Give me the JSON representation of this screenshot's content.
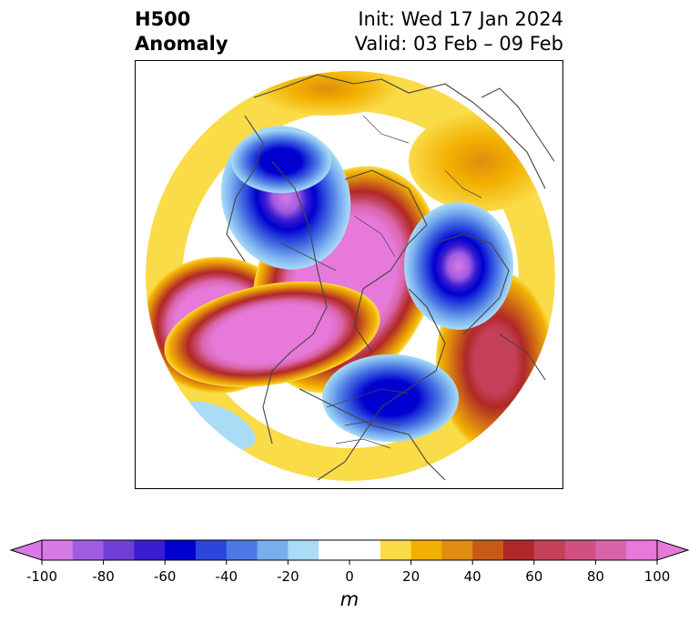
{
  "title": {
    "left_line1": "H500",
    "left_line2": "Anomaly",
    "right_line1": "Init: Wed 17 Jan 2024",
    "right_line2": "Valid: 03 Feb – 09 Feb"
  },
  "map": {
    "projection": "north-polar-stereographic",
    "field": "500 hPa geopotential height anomaly",
    "coastline_color": "#444444"
  },
  "colorbar": {
    "units": "m",
    "min": -100,
    "max": 100,
    "step": 10,
    "extend": "both",
    "colors": [
      "#d77ae8",
      "#a05ce0",
      "#6f3fd6",
      "#3a1dd2",
      "#0000cf",
      "#2a46de",
      "#4d78e4",
      "#79aeee",
      "#aadcf8",
      "#ffffff",
      "#ffffff",
      "#fadb48",
      "#f2b000",
      "#e08c10",
      "#c85a18",
      "#b02828",
      "#c44058",
      "#cf5081",
      "#d865ab",
      "#e679d9"
    ],
    "under_color": "#d77ae8",
    "over_color": "#e679d9",
    "tick_values": [
      -100,
      -80,
      -60,
      -40,
      -20,
      0,
      20,
      40,
      60,
      80,
      100
    ],
    "tick_labels": [
      "-100",
      "-80",
      "-60",
      "-40",
      "-20",
      "0",
      "20",
      "40",
      "60",
      "80",
      "100"
    ]
  }
}
